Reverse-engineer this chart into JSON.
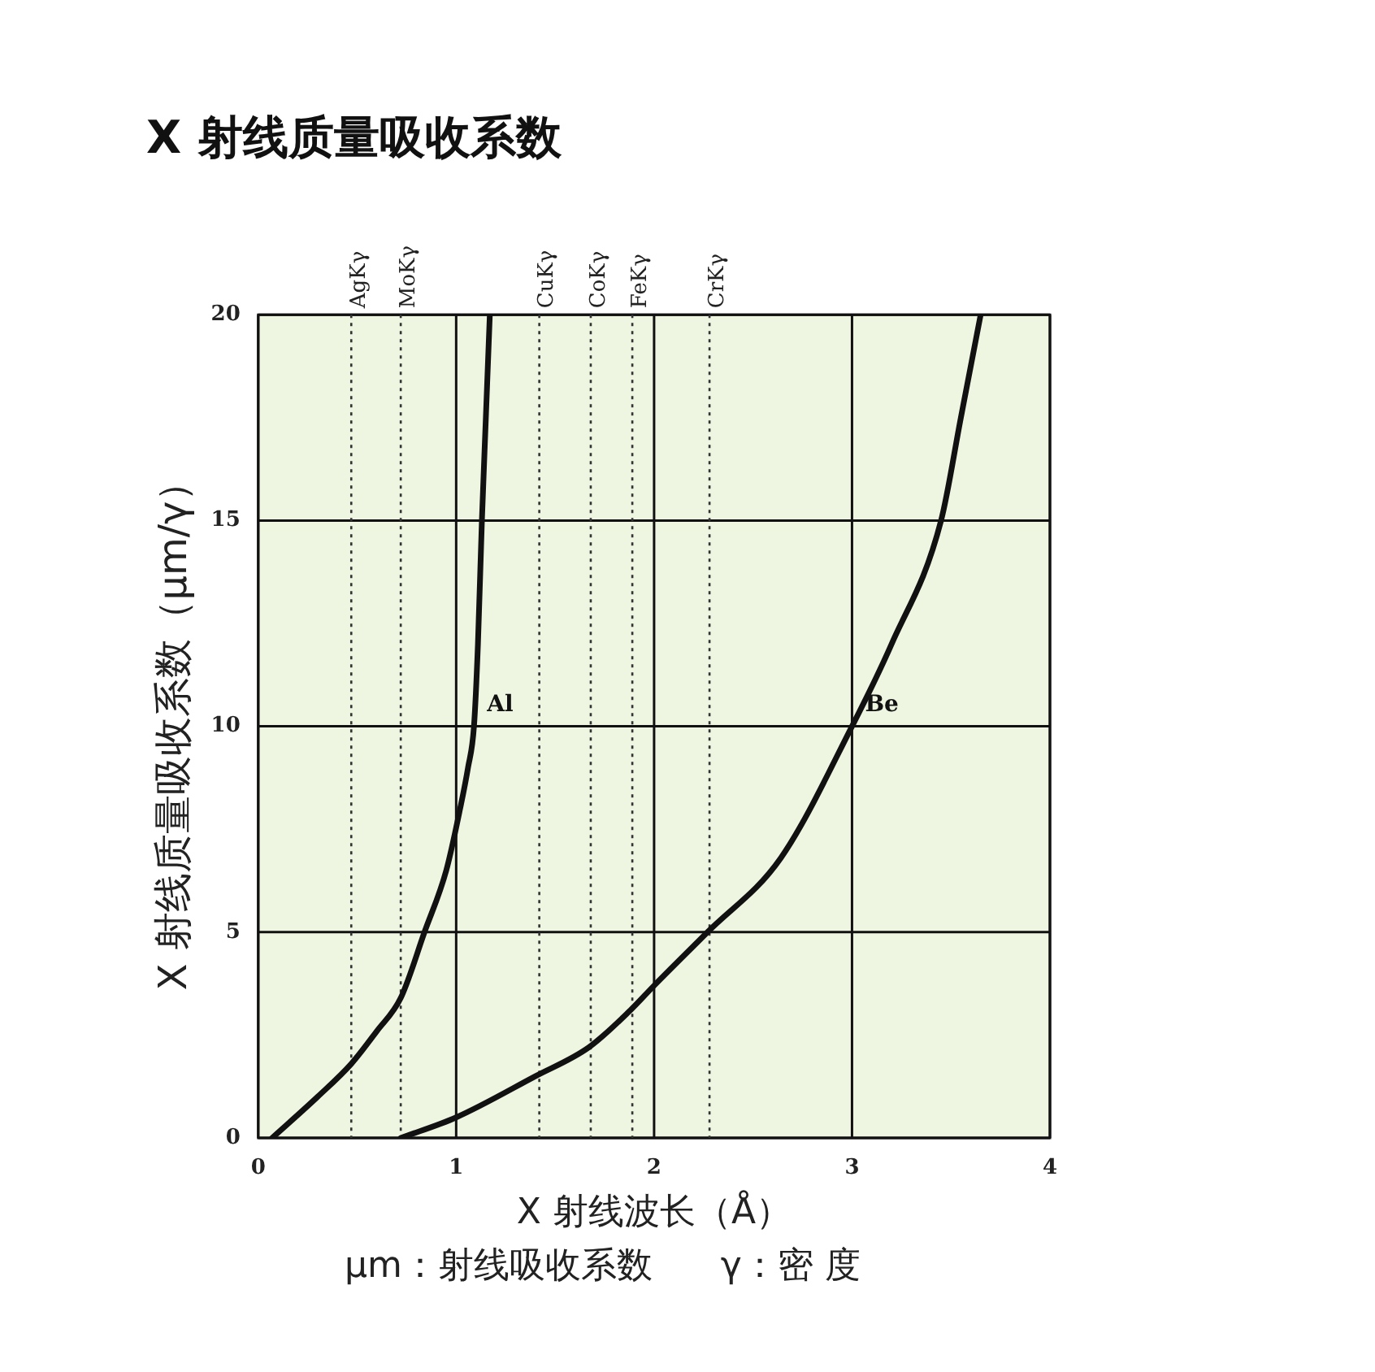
{
  "chart_data": {
    "type": "line",
    "title": "X 射线质量吸收系数",
    "xlabel": "X 射线波长（Å）",
    "ylabel": "X 射线质量吸收系数（μm/γ）",
    "annotations": [
      "μm：射线吸收系数      γ：密 度"
    ],
    "xlim": [
      0,
      4
    ],
    "xticks": [
      0,
      1,
      2,
      3,
      4
    ],
    "ylim": [
      0,
      20
    ],
    "yticks": [
      0,
      5,
      10,
      15,
      20
    ],
    "grid": true,
    "legend": false,
    "marker": "none",
    "line_style": "solid",
    "series": [
      {
        "name": "Al",
        "color": "#111111",
        "x": [
          0.07,
          0.3,
          0.47,
          0.6,
          0.72,
          0.84,
          0.95,
          1.02,
          1.06,
          1.09,
          1.11,
          1.13,
          1.15,
          1.17
        ],
        "values": [
          0,
          1,
          1.8,
          2.6,
          3.4,
          5,
          6.5,
          8,
          9,
          10,
          12,
          15,
          17.5,
          20
        ]
      },
      {
        "name": "Be",
        "color": "#111111",
        "x": [
          0.72,
          1.0,
          1.4,
          1.67,
          1.88,
          2.0,
          2.27,
          2.64,
          3.0,
          3.2,
          3.45,
          3.55,
          3.65
        ],
        "values": [
          0,
          0.5,
          1.5,
          2.2,
          3.1,
          3.7,
          5,
          6.8,
          10,
          12,
          15,
          17.5,
          20
        ]
      }
    ],
    "ref_lines": [
      {
        "axis": "x",
        "value": 0.47,
        "label": "AgKγ",
        "color": "#333333",
        "line_style": "dotted"
      },
      {
        "axis": "x",
        "value": 0.72,
        "label": "MoKγ",
        "color": "#333333",
        "line_style": "dotted"
      },
      {
        "axis": "x",
        "value": 1.42,
        "label": "CuKγ",
        "color": "#333333",
        "line_style": "dotted"
      },
      {
        "axis": "x",
        "value": 1.68,
        "label": "CoKγ",
        "color": "#333333",
        "line_style": "dotted"
      },
      {
        "axis": "x",
        "value": 1.89,
        "label": "FeKγ",
        "color": "#333333",
        "line_style": "dotted"
      },
      {
        "axis": "x",
        "value": 2.28,
        "label": "CrKγ",
        "color": "#333333",
        "line_style": "dotted"
      }
    ]
  }
}
